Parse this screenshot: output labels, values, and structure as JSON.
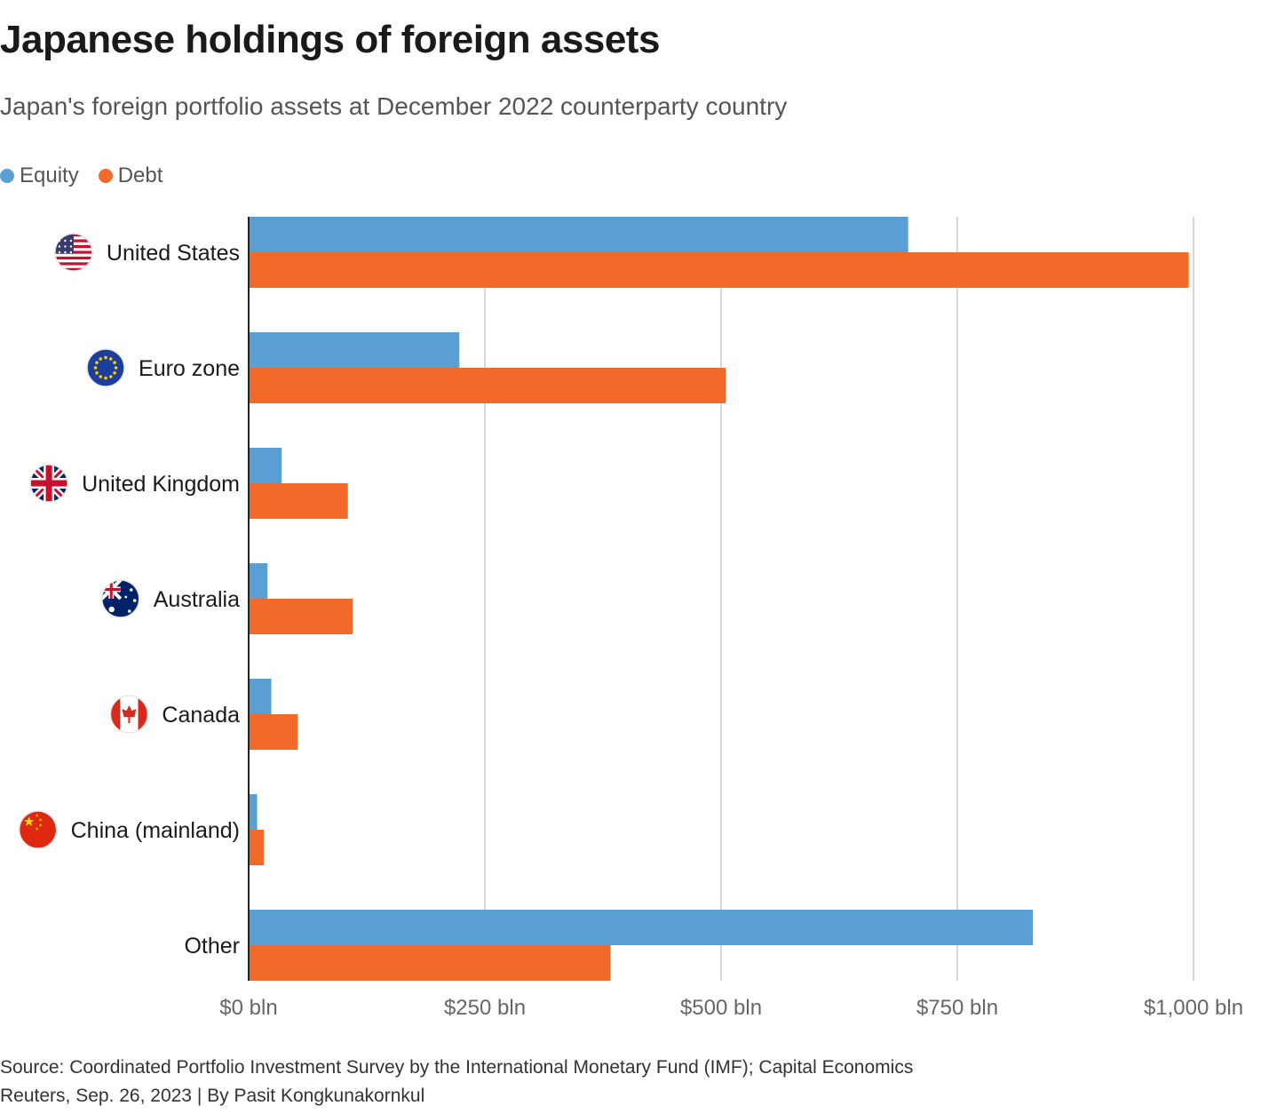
{
  "chart_data": {
    "type": "bar",
    "orientation": "horizontal",
    "title": "Japanese holdings of foreign assets",
    "subtitle": "Japan's foreign portfolio assets at December 2022 counterparty country",
    "categories": [
      "United States",
      "Euro zone",
      "United Kingdom",
      "Australia",
      "Canada",
      "China (mainland)",
      "Other"
    ],
    "category_icons": [
      "us-flag-icon",
      "eu-flag-icon",
      "uk-flag-icon",
      "australia-flag-icon",
      "canada-flag-icon",
      "china-flag-icon",
      null
    ],
    "series": [
      {
        "name": "Equity",
        "color": "#5a9fd4",
        "values": [
          698,
          223,
          35,
          20,
          24,
          9,
          830
        ]
      },
      {
        "name": "Debt",
        "color": "#f26a2a",
        "values": [
          995,
          505,
          105,
          110,
          52,
          16,
          383
        ]
      }
    ],
    "xlim": [
      0,
      1000
    ],
    "ticks": [
      0,
      250,
      500,
      750,
      1000
    ],
    "tick_labels": [
      "$0 bln",
      "$250 bln",
      "$500 bln",
      "$750 bln",
      "$1,000 bln"
    ],
    "grid": true,
    "legend_position": "top-left"
  },
  "footer": {
    "source": "Source: Coordinated Portfolio Investment Survey by the International Monetary Fund (IMF); Capital Economics",
    "credit": "Reuters, Sep. 26, 2023 | By Pasit Kongkunakornkul"
  }
}
